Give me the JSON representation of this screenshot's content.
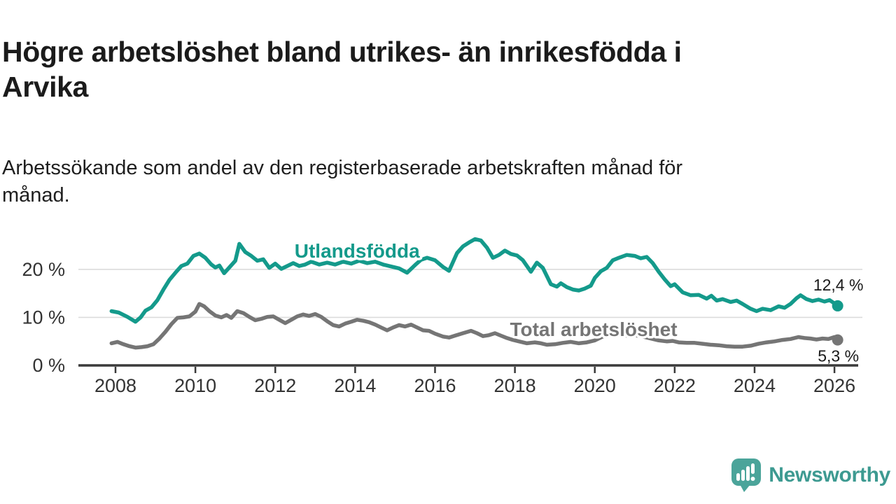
{
  "header": {
    "title_lines": [
      "Högre arbetslöshet bland utrikes- än inrikesfödda i",
      "Arvika"
    ],
    "subtitle_lines": [
      "Arbetssökande som andel av den registerbaserade arbetskraften månad för",
      "månad."
    ]
  },
  "footer": {
    "brand": "Newsworthy",
    "brand_color": "#3d9a91",
    "icon": "newsworthy-speech-bubble-bar-chart-icon",
    "icon_color": "#4ba49a"
  },
  "colors": {
    "foreign_born_line": "#149a8b",
    "total_line": "#757575",
    "axis": "#3a3a3a",
    "gridline": "#dcdcdc",
    "tick_text": "#333333",
    "end_label_text": "#1a1a1a"
  },
  "chart_data": {
    "type": "line",
    "title": "Högre arbetslöshet bland utrikes- än inrikesfödda i Arvika",
    "subtitle": "Arbetssökande som andel av den registerbaserade arbetskraften månad för månad.",
    "xlabel": "",
    "ylabel": "",
    "grid": "horizontal",
    "legend_position": "inline-labels",
    "x_axis": {
      "range": [
        2007.85,
        2026.35
      ],
      "ticks": [
        {
          "value": 2008,
          "label": "2008"
        },
        {
          "value": 2010,
          "label": "2010"
        },
        {
          "value": 2012,
          "label": "2012"
        },
        {
          "value": 2014,
          "label": "2014"
        },
        {
          "value": 2016,
          "label": "2016"
        },
        {
          "value": 2018,
          "label": "2018"
        },
        {
          "value": 2020,
          "label": "2020"
        },
        {
          "value": 2022,
          "label": "2022"
        },
        {
          "value": 2024,
          "label": "2024"
        },
        {
          "value": 2026,
          "label": "2026"
        }
      ]
    },
    "y_axis": {
      "range": [
        0,
        27.5
      ],
      "unit": "%",
      "ticks": [
        {
          "value": 0,
          "label": "0 %"
        },
        {
          "value": 10,
          "label": "10 %"
        },
        {
          "value": 20,
          "label": "20 %"
        }
      ]
    },
    "series": [
      {
        "name": "Utlandsfödda",
        "color": "#149a8b",
        "end_value": 12.4,
        "end_label": "12,4 %",
        "end_label_side": "above",
        "label_anchor": {
          "year": 2014.05,
          "value": 23.9
        },
        "points": [
          [
            2007.9,
            11.3
          ],
          [
            2008.08,
            11.0
          ],
          [
            2008.3,
            10.1
          ],
          [
            2008.5,
            9.1
          ],
          [
            2008.63,
            10.0
          ],
          [
            2008.75,
            11.4
          ],
          [
            2008.9,
            12.1
          ],
          [
            2009.05,
            13.6
          ],
          [
            2009.2,
            15.8
          ],
          [
            2009.35,
            17.8
          ],
          [
            2009.5,
            19.3
          ],
          [
            2009.65,
            20.7
          ],
          [
            2009.8,
            21.2
          ],
          [
            2009.95,
            22.8
          ],
          [
            2010.1,
            23.3
          ],
          [
            2010.25,
            22.4
          ],
          [
            2010.4,
            21.0
          ],
          [
            2010.5,
            20.4
          ],
          [
            2010.6,
            20.8
          ],
          [
            2010.72,
            19.2
          ],
          [
            2010.85,
            20.4
          ],
          [
            2011.0,
            21.8
          ],
          [
            2011.1,
            25.3
          ],
          [
            2011.25,
            23.6
          ],
          [
            2011.4,
            22.8
          ],
          [
            2011.55,
            21.8
          ],
          [
            2011.7,
            22.1
          ],
          [
            2011.85,
            20.3
          ],
          [
            2012.0,
            21.2
          ],
          [
            2012.15,
            20.1
          ],
          [
            2012.3,
            20.7
          ],
          [
            2012.45,
            21.3
          ],
          [
            2012.6,
            20.7
          ],
          [
            2012.75,
            21.0
          ],
          [
            2012.9,
            21.6
          ],
          [
            2013.1,
            21.0
          ],
          [
            2013.3,
            21.4
          ],
          [
            2013.5,
            21.0
          ],
          [
            2013.7,
            21.6
          ],
          [
            2013.9,
            21.2
          ],
          [
            2014.1,
            21.8
          ],
          [
            2014.3,
            21.3
          ],
          [
            2014.5,
            21.6
          ],
          [
            2014.7,
            21.0
          ],
          [
            2014.9,
            20.6
          ],
          [
            2015.1,
            20.2
          ],
          [
            2015.3,
            19.3
          ],
          [
            2015.5,
            20.9
          ],
          [
            2015.65,
            22.0
          ],
          [
            2015.8,
            22.4
          ],
          [
            2016.0,
            21.9
          ],
          [
            2016.2,
            20.5
          ],
          [
            2016.35,
            19.7
          ],
          [
            2016.55,
            23.4
          ],
          [
            2016.7,
            24.8
          ],
          [
            2016.85,
            25.6
          ],
          [
            2017.0,
            26.3
          ],
          [
            2017.15,
            26.0
          ],
          [
            2017.3,
            24.5
          ],
          [
            2017.45,
            22.4
          ],
          [
            2017.6,
            23.0
          ],
          [
            2017.75,
            23.9
          ],
          [
            2017.9,
            23.2
          ],
          [
            2018.05,
            22.9
          ],
          [
            2018.2,
            21.9
          ],
          [
            2018.4,
            19.5
          ],
          [
            2018.55,
            21.4
          ],
          [
            2018.7,
            20.3
          ],
          [
            2018.9,
            16.9
          ],
          [
            2019.05,
            16.4
          ],
          [
            2019.15,
            17.1
          ],
          [
            2019.3,
            16.3
          ],
          [
            2019.45,
            15.8
          ],
          [
            2019.6,
            15.6
          ],
          [
            2019.75,
            16.0
          ],
          [
            2019.9,
            16.6
          ],
          [
            2020.0,
            18.2
          ],
          [
            2020.15,
            19.6
          ],
          [
            2020.3,
            20.3
          ],
          [
            2020.45,
            21.9
          ],
          [
            2020.6,
            22.4
          ],
          [
            2020.8,
            23.0
          ],
          [
            2021.0,
            22.8
          ],
          [
            2021.15,
            22.3
          ],
          [
            2021.3,
            22.6
          ],
          [
            2021.45,
            21.3
          ],
          [
            2021.6,
            19.5
          ],
          [
            2021.75,
            17.9
          ],
          [
            2021.9,
            16.5
          ],
          [
            2022.0,
            16.9
          ],
          [
            2022.2,
            15.2
          ],
          [
            2022.4,
            14.6
          ],
          [
            2022.6,
            14.7
          ],
          [
            2022.8,
            13.9
          ],
          [
            2022.92,
            14.5
          ],
          [
            2023.05,
            13.5
          ],
          [
            2023.2,
            13.8
          ],
          [
            2023.4,
            13.2
          ],
          [
            2023.55,
            13.5
          ],
          [
            2023.7,
            12.8
          ],
          [
            2023.9,
            11.8
          ],
          [
            2024.05,
            11.3
          ],
          [
            2024.2,
            11.8
          ],
          [
            2024.4,
            11.5
          ],
          [
            2024.6,
            12.3
          ],
          [
            2024.75,
            12.0
          ],
          [
            2024.9,
            12.8
          ],
          [
            2025.05,
            14.0
          ],
          [
            2025.15,
            14.6
          ],
          [
            2025.3,
            13.8
          ],
          [
            2025.45,
            13.4
          ],
          [
            2025.6,
            13.7
          ],
          [
            2025.75,
            13.3
          ],
          [
            2025.88,
            13.6
          ],
          [
            2026.0,
            12.9
          ],
          [
            2026.08,
            12.4
          ]
        ]
      },
      {
        "name": "Total arbetslöshet",
        "color": "#757575",
        "end_value": 5.3,
        "end_label": "5,3 %",
        "end_label_side": "below",
        "label_anchor": {
          "year": 2019.97,
          "value": 7.6
        },
        "points": [
          [
            2007.9,
            4.6
          ],
          [
            2008.05,
            4.9
          ],
          [
            2008.2,
            4.4
          ],
          [
            2008.35,
            4.0
          ],
          [
            2008.5,
            3.7
          ],
          [
            2008.65,
            3.8
          ],
          [
            2008.8,
            4.0
          ],
          [
            2008.95,
            4.4
          ],
          [
            2009.1,
            5.6
          ],
          [
            2009.25,
            7.0
          ],
          [
            2009.4,
            8.6
          ],
          [
            2009.55,
            9.9
          ],
          [
            2009.7,
            10.0
          ],
          [
            2009.85,
            10.2
          ],
          [
            2010.0,
            11.2
          ],
          [
            2010.1,
            12.8
          ],
          [
            2010.22,
            12.3
          ],
          [
            2010.35,
            11.3
          ],
          [
            2010.5,
            10.4
          ],
          [
            2010.65,
            10.0
          ],
          [
            2010.78,
            10.5
          ],
          [
            2010.9,
            9.9
          ],
          [
            2011.05,
            11.3
          ],
          [
            2011.2,
            10.9
          ],
          [
            2011.35,
            10.1
          ],
          [
            2011.5,
            9.4
          ],
          [
            2011.65,
            9.7
          ],
          [
            2011.8,
            10.1
          ],
          [
            2011.95,
            10.2
          ],
          [
            2012.1,
            9.5
          ],
          [
            2012.25,
            8.8
          ],
          [
            2012.4,
            9.5
          ],
          [
            2012.55,
            10.2
          ],
          [
            2012.7,
            10.6
          ],
          [
            2012.85,
            10.3
          ],
          [
            2013.0,
            10.7
          ],
          [
            2013.15,
            10.1
          ],
          [
            2013.3,
            9.2
          ],
          [
            2013.45,
            8.4
          ],
          [
            2013.6,
            8.1
          ],
          [
            2013.75,
            8.7
          ],
          [
            2013.9,
            9.1
          ],
          [
            2014.05,
            9.5
          ],
          [
            2014.2,
            9.3
          ],
          [
            2014.35,
            9.0
          ],
          [
            2014.5,
            8.5
          ],
          [
            2014.65,
            7.9
          ],
          [
            2014.8,
            7.3
          ],
          [
            2014.95,
            7.9
          ],
          [
            2015.1,
            8.4
          ],
          [
            2015.25,
            8.1
          ],
          [
            2015.4,
            8.5
          ],
          [
            2015.55,
            7.9
          ],
          [
            2015.7,
            7.3
          ],
          [
            2015.85,
            7.2
          ],
          [
            2016.0,
            6.6
          ],
          [
            2016.2,
            6.0
          ],
          [
            2016.35,
            5.8
          ],
          [
            2016.5,
            6.2
          ],
          [
            2016.7,
            6.7
          ],
          [
            2016.9,
            7.2
          ],
          [
            2017.05,
            6.7
          ],
          [
            2017.2,
            6.1
          ],
          [
            2017.35,
            6.3
          ],
          [
            2017.5,
            6.7
          ],
          [
            2017.65,
            6.2
          ],
          [
            2017.8,
            5.7
          ],
          [
            2017.95,
            5.3
          ],
          [
            2018.1,
            5.0
          ],
          [
            2018.3,
            4.6
          ],
          [
            2018.5,
            4.8
          ],
          [
            2018.65,
            4.6
          ],
          [
            2018.8,
            4.3
          ],
          [
            2019.0,
            4.4
          ],
          [
            2019.2,
            4.7
          ],
          [
            2019.4,
            4.9
          ],
          [
            2019.6,
            4.6
          ],
          [
            2019.8,
            4.8
          ],
          [
            2020.0,
            5.2
          ],
          [
            2020.2,
            6.0
          ],
          [
            2020.4,
            6.6
          ],
          [
            2020.6,
            6.4
          ],
          [
            2020.8,
            6.2
          ],
          [
            2021.0,
            6.3
          ],
          [
            2021.2,
            6.0
          ],
          [
            2021.4,
            5.6
          ],
          [
            2021.6,
            5.2
          ],
          [
            2021.8,
            5.0
          ],
          [
            2021.95,
            5.1
          ],
          [
            2022.1,
            4.8
          ],
          [
            2022.3,
            4.7
          ],
          [
            2022.5,
            4.7
          ],
          [
            2022.7,
            4.5
          ],
          [
            2022.9,
            4.3
          ],
          [
            2023.1,
            4.2
          ],
          [
            2023.3,
            4.0
          ],
          [
            2023.5,
            3.9
          ],
          [
            2023.7,
            3.9
          ],
          [
            2023.9,
            4.1
          ],
          [
            2024.1,
            4.5
          ],
          [
            2024.3,
            4.8
          ],
          [
            2024.5,
            5.0
          ],
          [
            2024.7,
            5.3
          ],
          [
            2024.9,
            5.5
          ],
          [
            2025.1,
            5.9
          ],
          [
            2025.25,
            5.7
          ],
          [
            2025.4,
            5.6
          ],
          [
            2025.55,
            5.4
          ],
          [
            2025.7,
            5.6
          ],
          [
            2025.85,
            5.5
          ],
          [
            2026.0,
            5.9
          ],
          [
            2026.08,
            5.3
          ]
        ]
      }
    ]
  }
}
